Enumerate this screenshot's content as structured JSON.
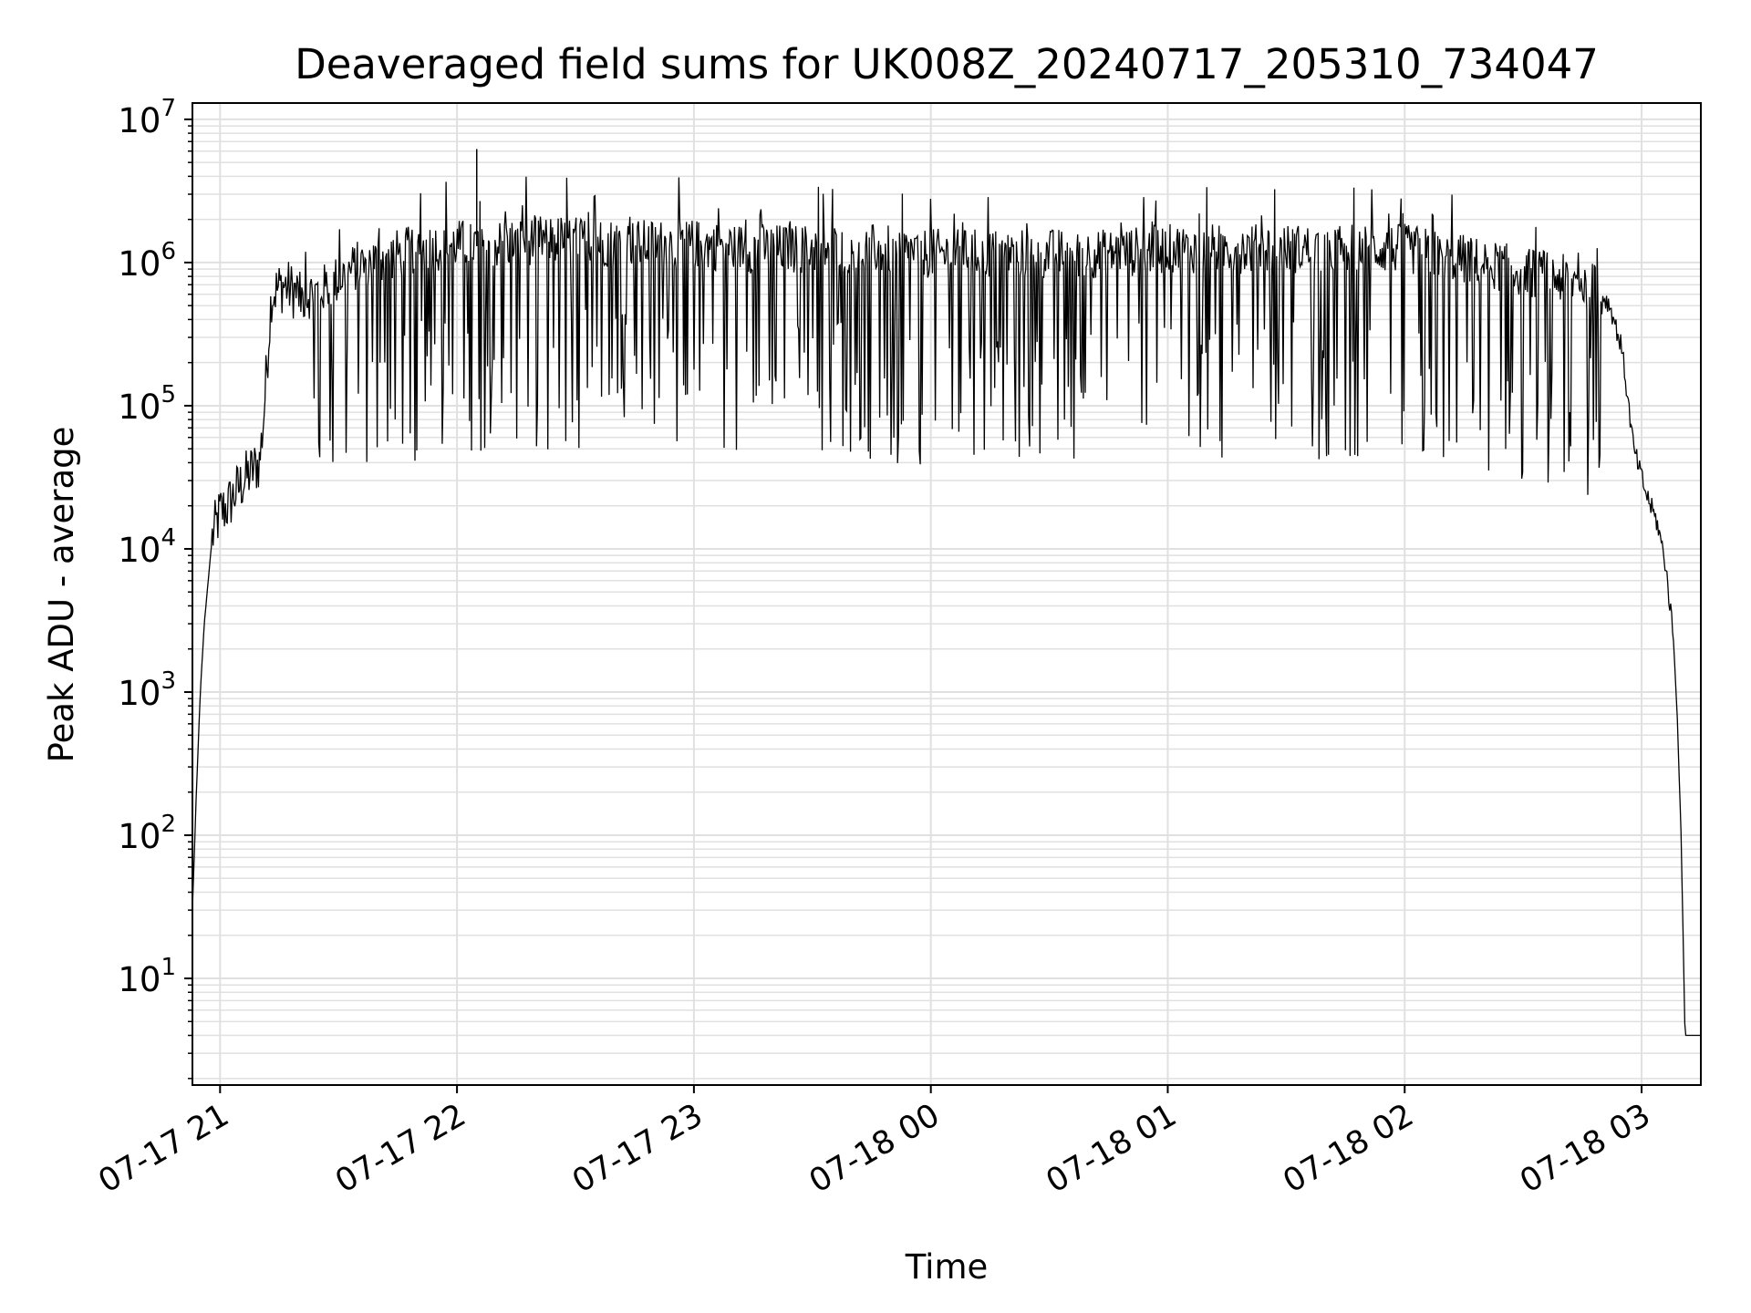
{
  "chart_data": {
    "type": "line",
    "title": "Deaveraged field sums for UK008Z_20240717_205310_734047",
    "xlabel": "Time",
    "ylabel": "Peak ADU - average",
    "yscale": "log",
    "ylim": [
      1.8,
      13000000
    ],
    "xlim": [
      "2024-07-17 20:53",
      "2024-07-18 03:15"
    ],
    "grid": true,
    "grid_minor": true,
    "line_color": "#000000",
    "grid_color": "#e0e0e0",
    "x_ticks": [
      {
        "t": "2024-07-17 21:00",
        "label": "07-17 21"
      },
      {
        "t": "2024-07-17 22:00",
        "label": "07-17 22"
      },
      {
        "t": "2024-07-17 23:00",
        "label": "07-17 23"
      },
      {
        "t": "2024-07-18 00:00",
        "label": "07-18 00"
      },
      {
        "t": "2024-07-18 01:00",
        "label": "07-18 01"
      },
      {
        "t": "2024-07-18 02:00",
        "label": "07-18 02"
      },
      {
        "t": "2024-07-18 03:00",
        "label": "07-18 03"
      }
    ],
    "y_ticks": [
      {
        "v": 10,
        "base": "10",
        "exp": "1"
      },
      {
        "v": 100,
        "base": "10",
        "exp": "2"
      },
      {
        "v": 1000,
        "base": "10",
        "exp": "3"
      },
      {
        "v": 10000,
        "base": "10",
        "exp": "4"
      },
      {
        "v": 100000,
        "base": "10",
        "exp": "5"
      },
      {
        "v": 1000000,
        "base": "10",
        "exp": "6"
      },
      {
        "v": 10000000,
        "base": "10",
        "exp": "7"
      }
    ],
    "series": [
      {
        "x": [
          "2024-07-17 20:53",
          "2024-07-17 20:54",
          "2024-07-17 20:55",
          "2024-07-17 20:56",
          "2024-07-17 20:57",
          "2024-07-17 20:58",
          "2024-07-17 21:00",
          "2024-07-17 21:02",
          "2024-07-17 21:04",
          "2024-07-17 21:06",
          "2024-07-17 21:08",
          "2024-07-17 21:10",
          "2024-07-17 21:11",
          "2024-07-17 21:13",
          "2024-07-17 21:16",
          "2024-07-17 21:20",
          "2024-07-17 21:25",
          "2024-07-17 21:30",
          "2024-07-17 21:35",
          "2024-07-17 21:40",
          "2024-07-17 21:45",
          "2024-07-17 21:50",
          "2024-07-17 22:00",
          "2024-07-17 22:10",
          "2024-07-17 22:20",
          "2024-07-17 22:30",
          "2024-07-17 22:45",
          "2024-07-17 23:00",
          "2024-07-17 23:15",
          "2024-07-17 23:30",
          "2024-07-17 23:45",
          "2024-07-18 00:00",
          "2024-07-18 00:15",
          "2024-07-18 00:30",
          "2024-07-18 00:45",
          "2024-07-18 01:00",
          "2024-07-18 01:15",
          "2024-07-18 01:30",
          "2024-07-18 01:45",
          "2024-07-18 02:00",
          "2024-07-18 02:15",
          "2024-07-18 02:30",
          "2024-07-18 02:40",
          "2024-07-18 02:48",
          "2024-07-18 02:52",
          "2024-07-18 02:55",
          "2024-07-18 02:58",
          "2024-07-18 03:01",
          "2024-07-18 03:04",
          "2024-07-18 03:06",
          "2024-07-18 03:08",
          "2024-07-18 03:09",
          "2024-07-18 03:10",
          "2024-07-18 03:11",
          "2024-07-18 03:12",
          "2024-07-18 03:13",
          "2024-07-18 03:15"
        ],
        "y": [
          30,
          200,
          1000,
          3000,
          6000,
          12000,
          18000,
          20000,
          25000,
          30000,
          35000,
          40000,
          80000,
          600000,
          700000,
          600000,
          650000,
          800000,
          1000000,
          1100000,
          1200000,
          1300000,
          1400000,
          1400000,
          1500000,
          1500000,
          1400000,
          1400000,
          1300000,
          1300000,
          1300000,
          1200000,
          1200000,
          1200000,
          1200000,
          1300000,
          1300000,
          1300000,
          1300000,
          1300000,
          1100000,
          900000,
          800000,
          700000,
          500000,
          250000,
          50000,
          25000,
          15000,
          8000,
          2500,
          700,
          100,
          4,
          4,
          4,
          4
        ]
      }
    ],
    "annotations": [
      "dense noisy trace with frequent dips to ~4e4 and spikes to ~3e6 between 21:20 and 02:50; single spike ~6e6 near 22:05"
    ]
  }
}
